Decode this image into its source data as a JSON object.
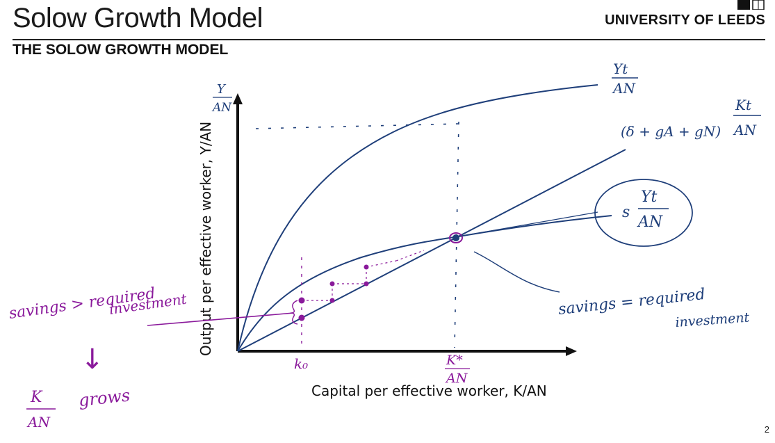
{
  "header": {
    "title": "Solow Growth Model",
    "logo_text": "UNIVERSITY OF LEEDS",
    "subheading": "THE SOLOW GROWTH MODEL"
  },
  "diagram": {
    "y_axis_label": "Output per effective worker, Y/AN",
    "x_axis_label": "Capital per effective worker, K/AN",
    "curve_labels": {
      "production": {
        "num": "Yt",
        "den": "AN"
      },
      "required_investment": {
        "prefix": "(δ + gA + gN)",
        "num": "Kt",
        "den": "AN"
      },
      "savings": {
        "prefix": "s",
        "num": "Yt",
        "den": "AN"
      },
      "y_axis_hand": {
        "num": "Y",
        "den": "AN"
      }
    },
    "tick_labels": {
      "k0": "k₀",
      "k_star": {
        "num": "K*",
        "den": "AN"
      }
    },
    "annotations": {
      "left_note": "savings > required investment",
      "left_note_line1": "savings > required",
      "left_note_line2": "investment",
      "arrow_down": "↓",
      "result": "grows",
      "result_num": "K",
      "result_den": "AN",
      "right_note_line1": "savings = required",
      "right_note_line2": "investment"
    },
    "colors": {
      "axis": "#111111",
      "curves": "#1f3f7a",
      "annotation_purple": "#8a1a9b"
    }
  },
  "footer": {
    "page_number": "2"
  }
}
